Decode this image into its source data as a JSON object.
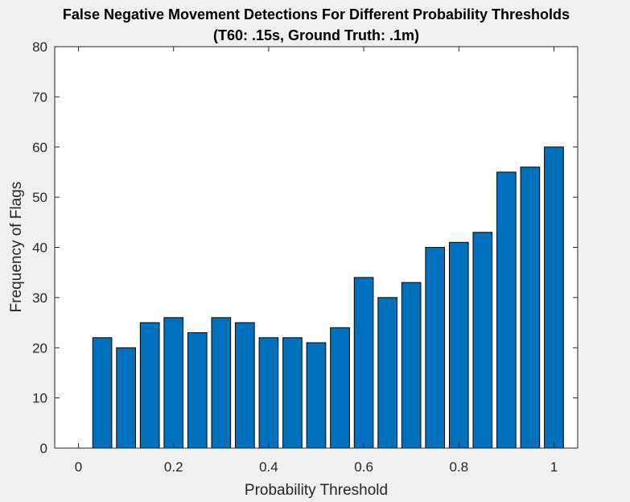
{
  "chart_data": {
    "type": "bar",
    "title": "False Negative Movement Detections For Different Probability Thresholds",
    "subtitle": "(T60: .15s, Ground Truth: .1m)",
    "xlabel": "Probability Threshold",
    "ylabel": "Frequency of Flags",
    "x": [
      0.05,
      0.1,
      0.15,
      0.2,
      0.25,
      0.3,
      0.35,
      0.4,
      0.45,
      0.5,
      0.55,
      0.6,
      0.65,
      0.7,
      0.75,
      0.8,
      0.85,
      0.9,
      0.95,
      1.0
    ],
    "values": [
      22,
      20,
      25,
      26,
      23,
      26,
      25,
      22,
      22,
      21,
      24,
      34,
      30,
      33,
      40,
      41,
      43,
      55,
      56,
      60
    ],
    "bar_width": 0.04,
    "xlim": [
      -0.05,
      1.05
    ],
    "ylim": [
      0,
      80
    ],
    "xticks": [
      0,
      0.2,
      0.4,
      0.6,
      0.8,
      1
    ],
    "xtick_labels": [
      "0",
      "0.2",
      "0.4",
      "0.6",
      "0.8",
      "1"
    ],
    "yticks": [
      0,
      10,
      20,
      30,
      40,
      50,
      60,
      70,
      80
    ],
    "ytick_labels": [
      "0",
      "10",
      "20",
      "30",
      "40",
      "50",
      "60",
      "70",
      "80"
    ],
    "bar_color": "#0072bd",
    "grid": false,
    "legend": "none"
  }
}
